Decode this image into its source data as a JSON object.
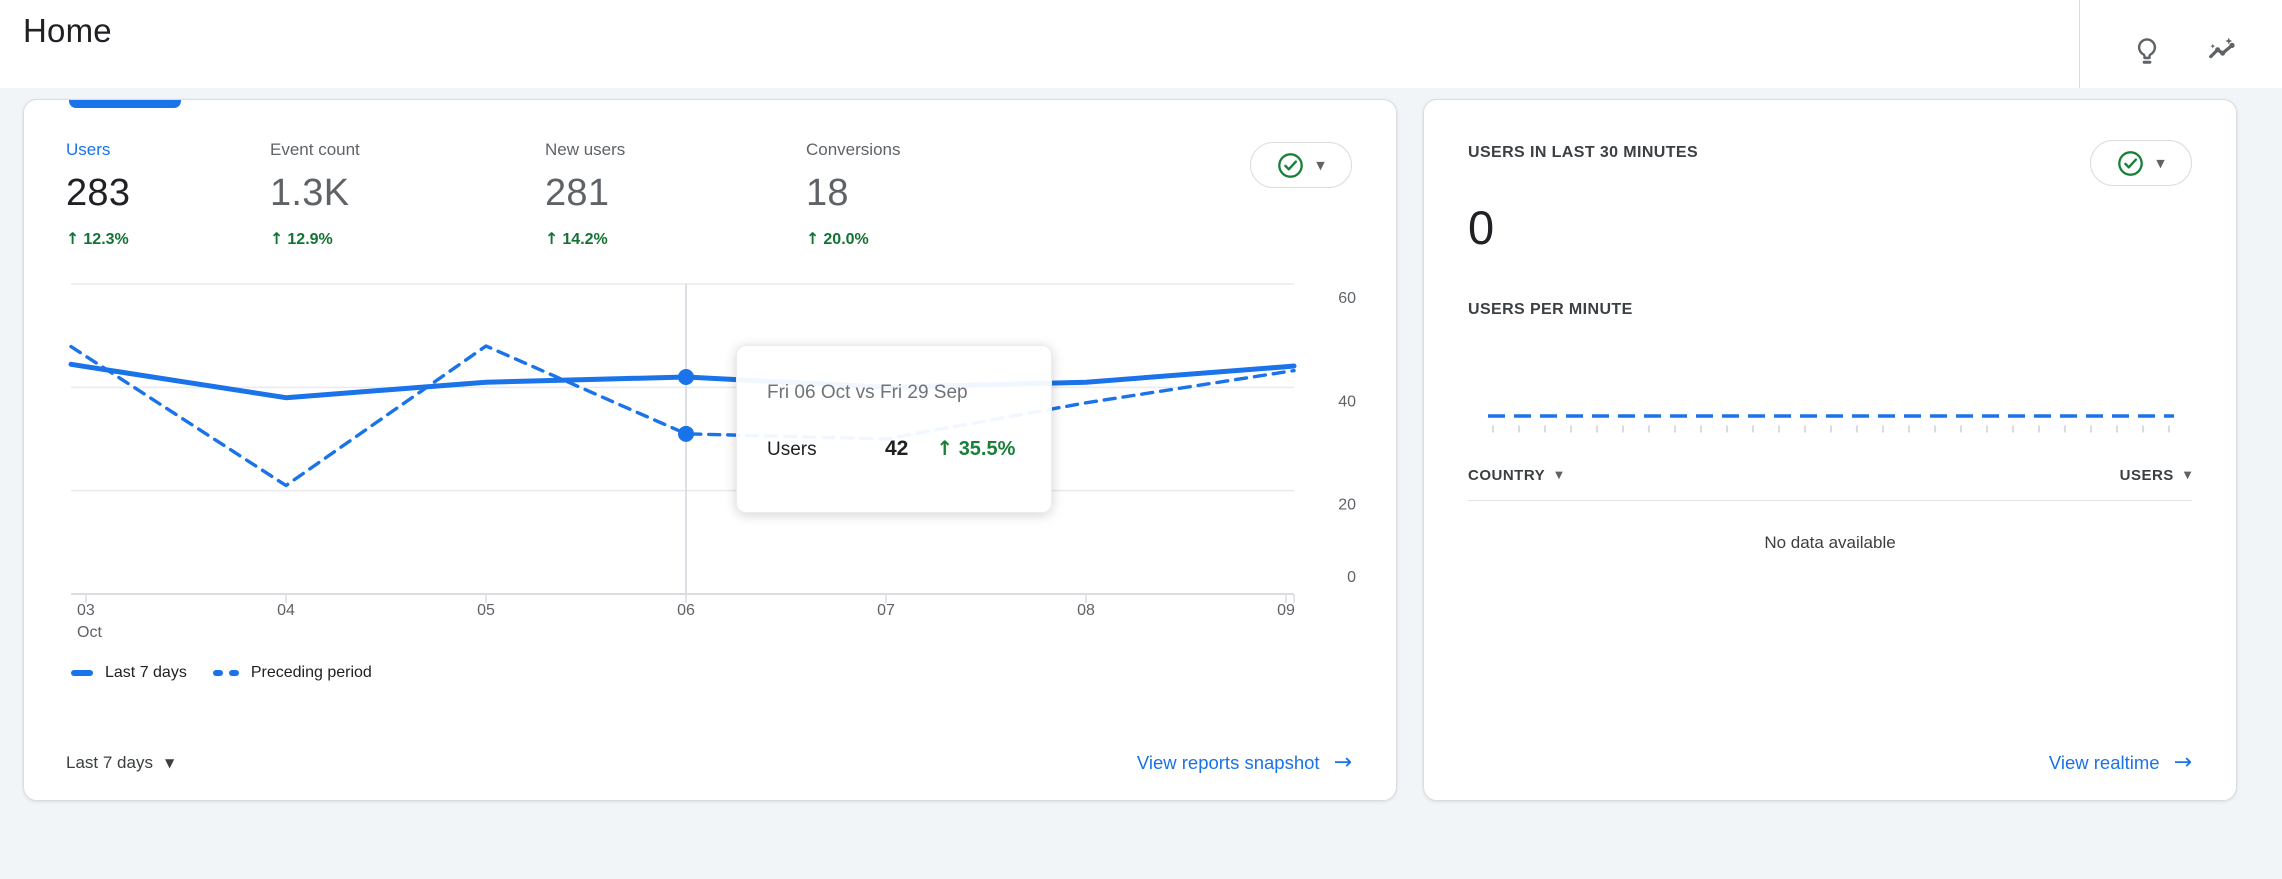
{
  "header": {
    "title": "Home",
    "icons": [
      "lightbulb-icon",
      "insights-sparkline-icon"
    ]
  },
  "glyphs": {
    "caret_down": "▼",
    "caret_small": "▾",
    "up": "↑",
    "arrow_right": "→"
  },
  "overview_card": {
    "status_icon": "check-circle-icon",
    "metrics": [
      {
        "label": "Users",
        "value": "283",
        "delta": "12.3%",
        "active": true
      },
      {
        "label": "Event count",
        "value": "1.3K",
        "delta": "12.9%",
        "active": false
      },
      {
        "label": "New users",
        "value": "281",
        "delta": "14.2%",
        "active": false
      },
      {
        "label": "Conversions",
        "value": "18",
        "delta": "20.0%",
        "active": false
      }
    ],
    "tooltip": {
      "title": "Fri 06 Oct vs Fri 29 Sep",
      "metric": "Users",
      "value": "42",
      "delta": "35.5%"
    },
    "legend": [
      {
        "label": "Last 7 days",
        "style": "solid"
      },
      {
        "label": "Preceding period",
        "style": "dashed"
      }
    ],
    "date_range": "Last 7 days",
    "link": "View reports snapshot"
  },
  "realtime_card": {
    "status_icon": "check-circle-icon",
    "title": "USERS IN LAST 30 MINUTES",
    "value": "0",
    "sparkline_label": "USERS PER MINUTE",
    "sparkline_value": 0,
    "table": {
      "columns": [
        "COUNTRY",
        "USERS"
      ],
      "empty": "No data available"
    },
    "link": "View realtime"
  },
  "chart_data": {
    "type": "line",
    "title": "Users by day, last 7 days vs preceding period",
    "x": [
      "03",
      "04",
      "05",
      "06",
      "07",
      "08",
      "09"
    ],
    "x_month": "Oct",
    "series": [
      {
        "name": "Last 7 days",
        "style": "solid",
        "values": [
          44,
          38,
          41,
          42,
          40,
          41,
          44
        ]
      },
      {
        "name": "Preceding period",
        "style": "dashed",
        "values": [
          46,
          21,
          48,
          31,
          30,
          37,
          43
        ]
      }
    ],
    "ylim": [
      0,
      60
    ],
    "yticks": [
      0,
      20,
      40,
      60
    ],
    "highlight_index": 3,
    "highlight_values": {
      "current": 42,
      "preceding": 31
    },
    "legend_position": "bottom",
    "colors": {
      "line": "#1a73e8",
      "grid": "#e8eaed",
      "axis": "#dadce0"
    }
  }
}
